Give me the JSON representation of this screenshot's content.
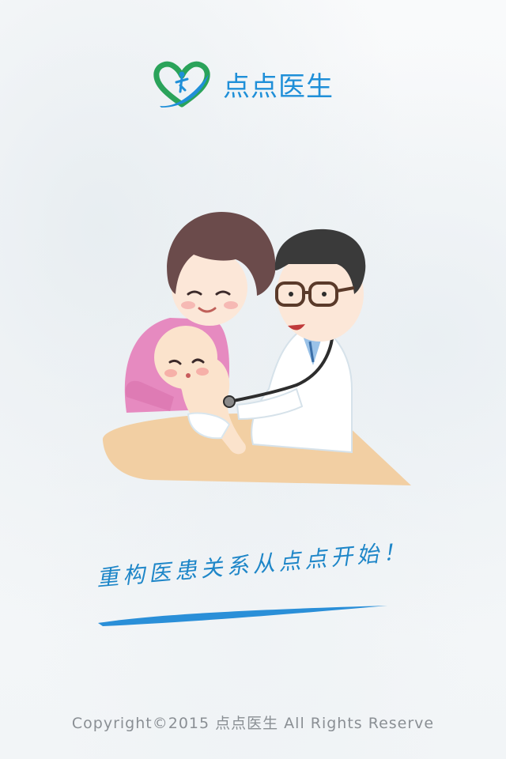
{
  "app": {
    "brand_name": "点点医生"
  },
  "colors": {
    "brand_blue": "#1f8fd8",
    "brand_green": "#2aa35a",
    "slogan_blue": "#1e86c8",
    "footer_gray": "#8a8f94"
  },
  "illustration": {
    "icon": "doctor-family-illustration"
  },
  "slogan": {
    "text": "重构医患关系从点点开始！"
  },
  "footer": {
    "copyright": "Copyright©2015 点点医生  All Rights Reserve"
  }
}
